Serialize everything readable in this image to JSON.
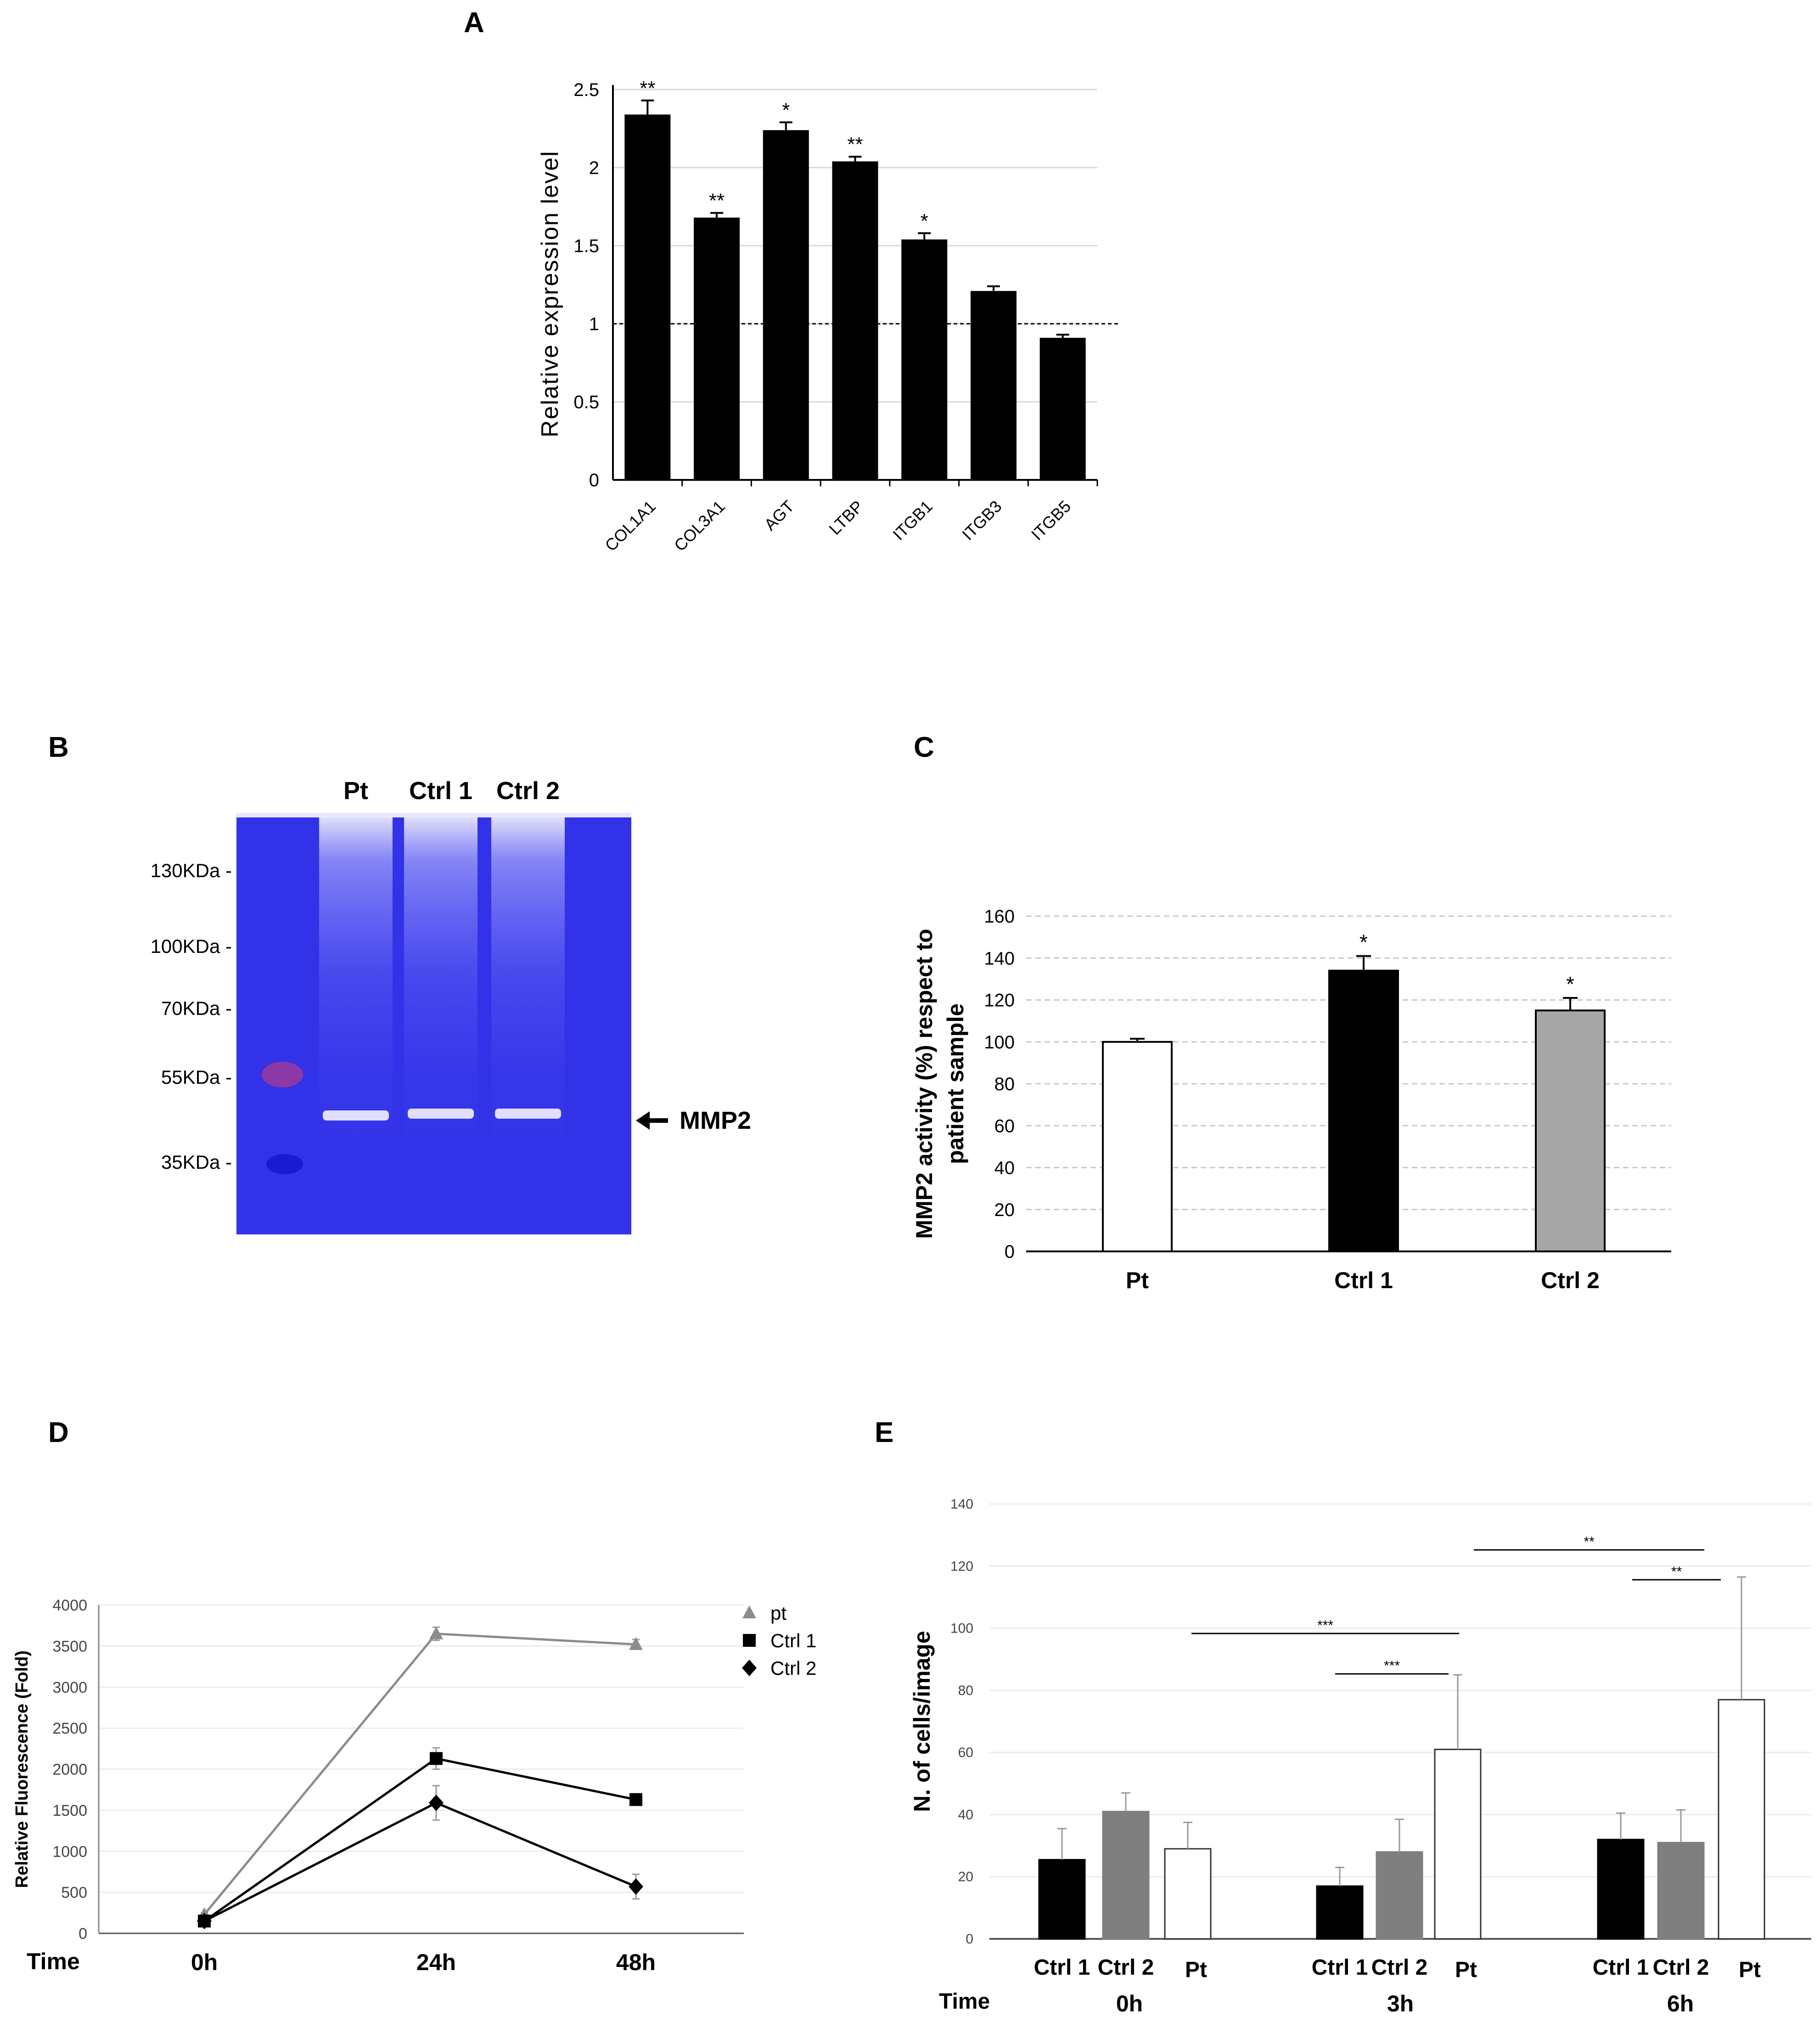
{
  "panels": {
    "A": "A",
    "B": "B",
    "C": "C",
    "D": "D",
    "E": "E"
  },
  "chart_data": [
    {
      "id": "A",
      "type": "bar",
      "title": "",
      "xlabel": "",
      "ylabel": "Relative expression level",
      "ylim": [
        0,
        2.5
      ],
      "yticks": [
        "0",
        "0.5",
        "1",
        "1.5",
        "2",
        "2.5"
      ],
      "categories": [
        "COL1A1",
        "COL3A1",
        "AGT",
        "LTBP",
        "ITGB1",
        "ITGB3",
        "ITGB5"
      ],
      "values": [
        2.34,
        1.68,
        2.24,
        2.04,
        1.54,
        1.21,
        0.91
      ],
      "errors": [
        0.09,
        0.03,
        0.05,
        0.03,
        0.04,
        0.03,
        0.02
      ],
      "significance": [
        "**",
        "**",
        "*",
        "**",
        "*",
        "",
        ""
      ],
      "reference_line": 1,
      "grid": true
    },
    {
      "id": "B",
      "type": "gel",
      "lanes": [
        "Pt",
        "Ctrl 1",
        "Ctrl 2"
      ],
      "markers": [
        "130KDa -",
        "100KDa -",
        "70KDa -",
        "55KDa -",
        "35KDa -"
      ],
      "band_label": "MMP2"
    },
    {
      "id": "C",
      "type": "bar",
      "ylabel": "MMP2 activity (%) respect to patient sample",
      "ylabel_lines": [
        "MMP2 activity (%) respect to",
        "patient sample"
      ],
      "ylim": [
        0,
        160
      ],
      "yticks": [
        "0",
        "20",
        "40",
        "60",
        "80",
        "100",
        "120",
        "140",
        "160"
      ],
      "categories": [
        "Pt",
        "Ctrl 1",
        "Ctrl 2"
      ],
      "values": [
        100,
        134,
        115
      ],
      "errors": [
        1.5,
        7,
        6
      ],
      "colors": [
        "#ffffff",
        "#000000",
        "#a6a6a6"
      ],
      "significance": [
        "",
        "*",
        "*"
      ],
      "grid": true
    },
    {
      "id": "D",
      "type": "line",
      "ylabel": "Relative Fluorescence (Fold)",
      "xlabel": "Time",
      "x": [
        "0h",
        "24h",
        "48h"
      ],
      "ylim": [
        0,
        4000
      ],
      "yticks": [
        "0",
        "500",
        "1000",
        "1500",
        "2000",
        "2500",
        "3000",
        "3500",
        "4000"
      ],
      "series": [
        {
          "name": "pt",
          "values": [
            230,
            3650,
            3520
          ],
          "errors": [
            20,
            80,
            60
          ],
          "color": "#8c8c8c",
          "marker": "triangle"
        },
        {
          "name": "Ctrl 1",
          "values": [
            150,
            2130,
            1630
          ],
          "errors": [
            15,
            130,
            40
          ],
          "color": "#000000",
          "marker": "square"
        },
        {
          "name": "Ctrl 2",
          "values": [
            150,
            1590,
            570
          ],
          "errors": [
            15,
            210,
            150
          ],
          "color": "#000000",
          "marker": "diamond"
        }
      ],
      "legend": "top-right",
      "grid": true
    },
    {
      "id": "E",
      "type": "bar",
      "ylabel": "N. of cells/image",
      "xlabel": "Time",
      "ylim": [
        0,
        140
      ],
      "yticks": [
        "0",
        "20",
        "40",
        "60",
        "80",
        "100",
        "120",
        "140"
      ],
      "groups": [
        "0h",
        "3h",
        "6h"
      ],
      "categories": [
        "Ctrl 1",
        "Ctrl 2",
        "Pt"
      ],
      "series": [
        {
          "name": "Ctrl 1",
          "values": [
            25.5,
            17,
            32
          ],
          "errors": [
            10,
            6,
            8.5
          ],
          "color": "#000000"
        },
        {
          "name": "Ctrl 2",
          "values": [
            41,
            28,
            31
          ],
          "errors": [
            6,
            10.5,
            10.5
          ],
          "color": "#7f7f7f"
        },
        {
          "name": "Pt",
          "values": [
            29,
            61,
            77
          ],
          "errors": [
            8.5,
            24,
            39.5
          ],
          "color": "#ffffff"
        }
      ],
      "brackets": [
        {
          "label": "***",
          "from": "0h Pt",
          "to": "3h Pt"
        },
        {
          "label": "***",
          "from": "3h Ctrl 1",
          "to": "3h Pt"
        },
        {
          "label": "**",
          "from": "3h Pt",
          "to": "6h Ctrl 2"
        },
        {
          "label": "**",
          "from": "6h Ctrl 2",
          "to": "6h Pt"
        }
      ],
      "grid": true
    }
  ]
}
